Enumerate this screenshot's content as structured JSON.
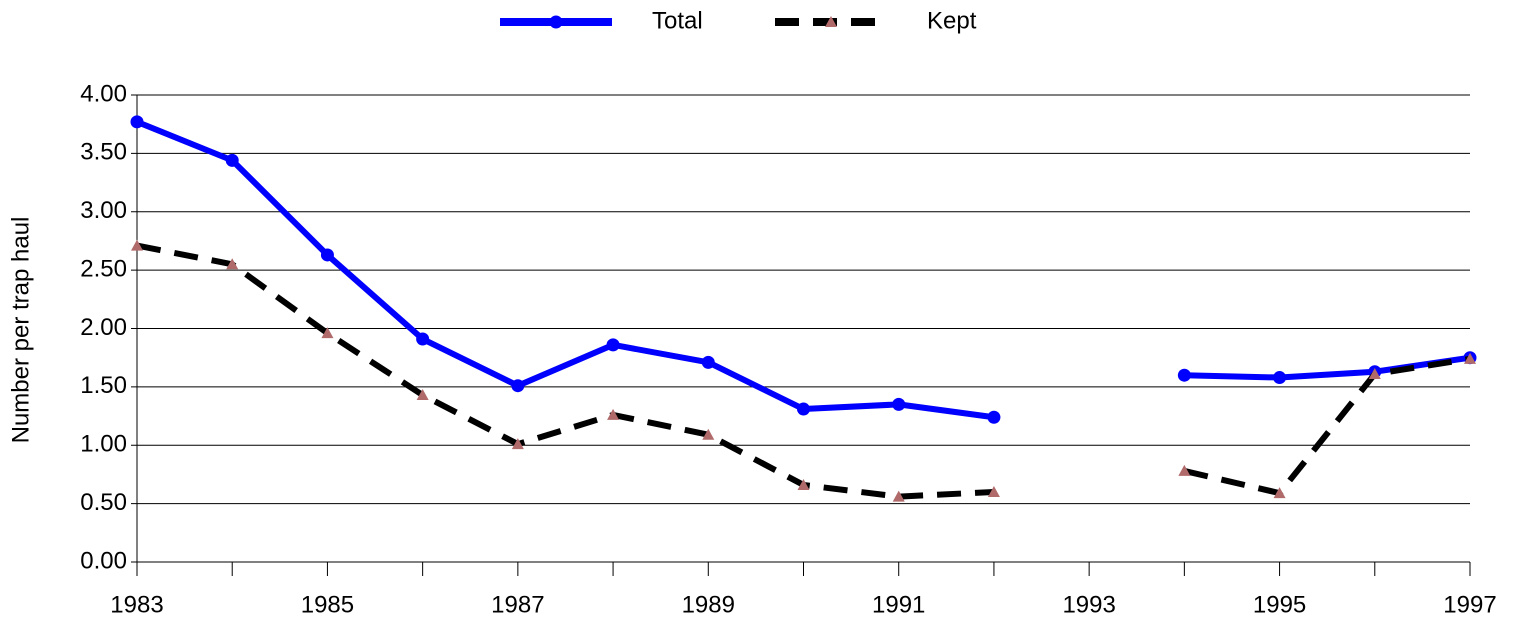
{
  "chart_data": {
    "type": "line",
    "y_label": "Number per trap haul",
    "x": [
      1983,
      1984,
      1985,
      1986,
      1987,
      1988,
      1989,
      1990,
      1991,
      1992,
      1993,
      1994,
      1995,
      1996,
      1997
    ],
    "series": [
      {
        "name": "Total",
        "color": "#0000ff",
        "marker": "circle",
        "marker_color": "#0000ff",
        "dash": false,
        "values": [
          3.77,
          3.44,
          2.63,
          1.91,
          1.51,
          1.86,
          1.71,
          1.31,
          1.35,
          1.24,
          null,
          1.6,
          1.58,
          1.63,
          1.75
        ]
      },
      {
        "name": "Kept",
        "color": "#000000",
        "marker": "triangle",
        "marker_color": "#b06a6a",
        "dash": true,
        "values": [
          2.71,
          2.55,
          1.96,
          1.43,
          1.01,
          1.26,
          1.09,
          0.66,
          0.56,
          0.6,
          null,
          0.78,
          0.59,
          1.61,
          1.74
        ]
      }
    ],
    "xlim": [
      1983,
      1997
    ],
    "xticks": [
      1983,
      1985,
      1987,
      1989,
      1991,
      1993,
      1995,
      1997
    ],
    "x_minor_ticks": [
      1984,
      1986,
      1988,
      1990,
      1992,
      1994,
      1996
    ],
    "ylim": [
      0,
      4
    ],
    "yticks": [
      {
        "value": 0,
        "label": "0.00"
      },
      {
        "value": 0.5,
        "label": "0.50"
      },
      {
        "value": 1,
        "label": "1.00"
      },
      {
        "value": 1.5,
        "label": "1.50"
      },
      {
        "value": 2,
        "label": "2.00"
      },
      {
        "value": 2.5,
        "label": "2.50"
      },
      {
        "value": 3,
        "label": "3.00"
      },
      {
        "value": 3.5,
        "label": "3.50"
      },
      {
        "value": 4,
        "label": "4.00"
      }
    ],
    "grid": true,
    "legend": "top"
  }
}
